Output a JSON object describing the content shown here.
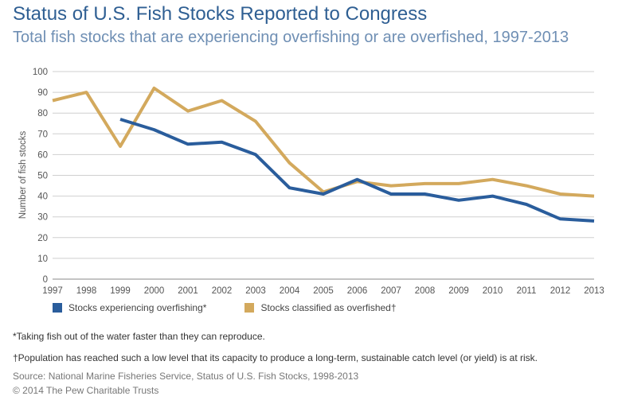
{
  "header": {
    "title": "Status of U.S. Fish Stocks Reported to Congress",
    "subtitle": "Total fish stocks that are experiencing overfishing or are overfished, 1997-2013"
  },
  "chart_data": {
    "type": "line",
    "ylabel": "Number of fish stocks",
    "ylim": [
      0,
      100
    ],
    "yticks": [
      "0",
      "10",
      "20",
      "30",
      "40",
      "50",
      "60",
      "70",
      "80",
      "90",
      "100"
    ],
    "grid": true,
    "legend_position": "bottom-left",
    "categories": [
      "1997",
      "1998",
      "1999",
      "2000",
      "2001",
      "2002",
      "2003",
      "2004",
      "2005",
      "2006",
      "2007",
      "2008",
      "2009",
      "2010",
      "2011",
      "2012",
      "2013"
    ],
    "series": [
      {
        "name": "Stocks experiencing overfishing*",
        "color": "#2a5d9c",
        "values": [
          null,
          null,
          77,
          72,
          65,
          66,
          60,
          44,
          41,
          48,
          41,
          41,
          38,
          40,
          36,
          29,
          28
        ]
      },
      {
        "name": "Stocks classified as overfished†",
        "color": "#d3a95d",
        "values": [
          86,
          90,
          64,
          92,
          81,
          86,
          76,
          56,
          42,
          47,
          45,
          46,
          46,
          48,
          45,
          41,
          40
        ]
      }
    ]
  },
  "footnotes": {
    "overfishing": "*Taking fish out of the water faster than they can reproduce.",
    "overfished": "†Population has reached such a low level that its capacity to produce a long-term, sustainable catch level (or yield) is at risk.",
    "source": "Source: National Marine Fisheries Service, Status of U.S. Fish Stocks, 1998-2013",
    "copyright": "© 2014 The Pew Charitable Trusts"
  }
}
